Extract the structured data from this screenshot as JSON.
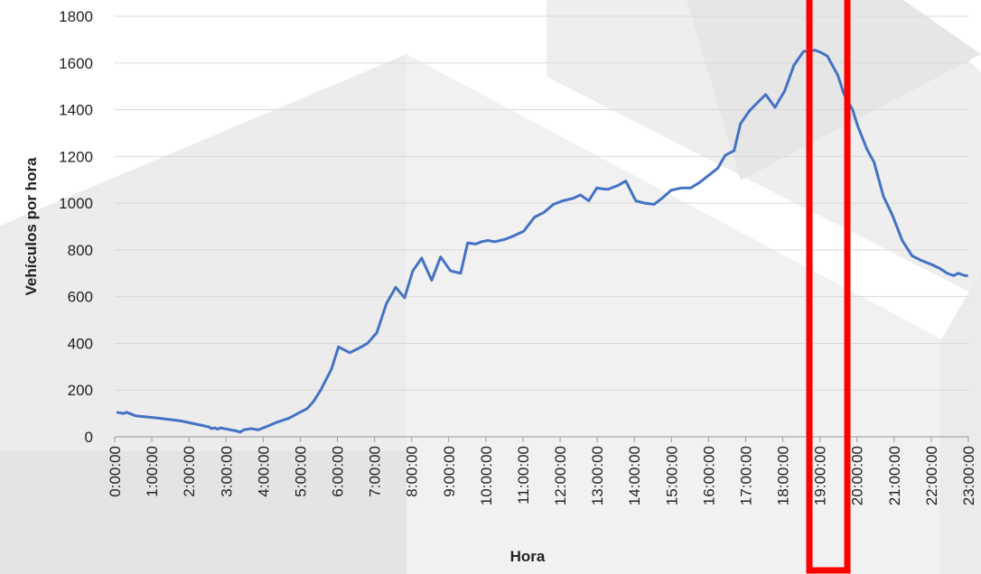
{
  "chart_data": {
    "type": "line",
    "x_label": "Hora",
    "y_label": "Vehículos por hora",
    "xlim": [
      0,
      23
    ],
    "xticks": [
      {
        "value": 0,
        "label": "0:00:00"
      },
      {
        "value": 1,
        "label": "1:00:00"
      },
      {
        "value": 2,
        "label": "2:00:00"
      },
      {
        "value": 3,
        "label": "3:00:00"
      },
      {
        "value": 4,
        "label": "4:00:00"
      },
      {
        "value": 5,
        "label": "5:00:00"
      },
      {
        "value": 6,
        "label": "6:00:00"
      },
      {
        "value": 7,
        "label": "7:00:00"
      },
      {
        "value": 8,
        "label": "8:00:00"
      },
      {
        "value": 9,
        "label": "9:00:00"
      },
      {
        "value": 10,
        "label": "10:00:00"
      },
      {
        "value": 11,
        "label": "11:00:00"
      },
      {
        "value": 12,
        "label": "12:00:00"
      },
      {
        "value": 13,
        "label": "13:00:00"
      },
      {
        "value": 14,
        "label": "14:00:00"
      },
      {
        "value": 15,
        "label": "15:00:00"
      },
      {
        "value": 16,
        "label": "16:00:00"
      },
      {
        "value": 17,
        "label": "17:00:00"
      },
      {
        "value": 18,
        "label": "18:00:00"
      },
      {
        "value": 19,
        "label": "19:00:00"
      },
      {
        "value": 20,
        "label": "20:00:00"
      },
      {
        "value": 21,
        "label": "21:00:00"
      },
      {
        "value": 22,
        "label": "22:00:00"
      },
      {
        "value": 23,
        "label": "23:00:00"
      }
    ],
    "ylim": [
      0,
      1800
    ],
    "yticks": [
      0,
      200,
      400,
      600,
      800,
      1000,
      1200,
      1400,
      1600,
      1800
    ],
    "grid": true,
    "series": [
      {
        "color": "#4472c4",
        "x": [
          0.05,
          0.24,
          0.32,
          0.56,
          1.17,
          1.78,
          2.55,
          2.6,
          2.7,
          2.77,
          2.85,
          3.28,
          3.38,
          3.48,
          3.67,
          3.87,
          4.11,
          4.33,
          4.7,
          4.99,
          5.18,
          5.35,
          5.55,
          5.84,
          6.03,
          6.33,
          6.59,
          6.81,
          7.06,
          7.32,
          7.57,
          7.81,
          8.03,
          8.27,
          8.54,
          8.78,
          9.05,
          9.32,
          9.51,
          9.73,
          9.88,
          10.05,
          10.24,
          10.51,
          10.75,
          11.02,
          11.31,
          11.56,
          11.82,
          12.07,
          12.34,
          12.55,
          12.77,
          12.99,
          13.21,
          13.31,
          13.38,
          13.55,
          13.77,
          14.04,
          14.28,
          14.53,
          14.74,
          14.99,
          15.26,
          15.52,
          15.77,
          16.01,
          16.25,
          16.45,
          16.69,
          16.86,
          17.1,
          17.35,
          17.54,
          17.79,
          18.05,
          18.3,
          18.56,
          18.73,
          18.86,
          19.03,
          19.2,
          19.49,
          19.64,
          19.88,
          20.02,
          20.27,
          20.46,
          20.71,
          20.95,
          21.22,
          21.48,
          21.73,
          21.97,
          22.24,
          22.43,
          22.6,
          22.73,
          22.9,
          22.99
        ],
        "values": [
          105,
          100,
          105,
          90,
          80,
          68,
          42,
          35,
          38,
          33,
          38,
          25,
          20,
          30,
          35,
          30,
          45,
          60,
          80,
          105,
          120,
          150,
          200,
          290,
          385,
          360,
          380,
          400,
          445,
          570,
          640,
          595,
          710,
          765,
          670,
          770,
          710,
          700,
          830,
          825,
          835,
          840,
          835,
          845,
          860,
          880,
          940,
          960,
          995,
          1010,
          1020,
          1035,
          1010,
          1065,
          1060,
          1060,
          1065,
          1075,
          1095,
          1010,
          1000,
          995,
          1020,
          1055,
          1065,
          1065,
          1090,
          1120,
          1150,
          1205,
          1225,
          1340,
          1395,
          1435,
          1465,
          1410,
          1480,
          1590,
          1650,
          1650,
          1655,
          1645,
          1630,
          1545,
          1470,
          1400,
          1330,
          1230,
          1175,
          1030,
          950,
          840,
          775,
          755,
          740,
          720,
          700,
          690,
          700,
          690,
          690
        ]
      }
    ]
  }
}
